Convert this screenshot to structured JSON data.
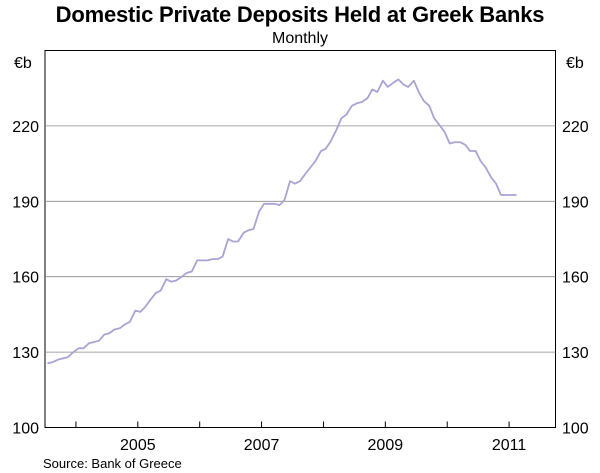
{
  "chart_data": {
    "type": "line",
    "title": "Domestic Private Deposits Held at Greek Banks",
    "subtitle": "Monthly",
    "ylabel_left": "€b",
    "ylabel_right": "€b",
    "ylim": [
      100,
      250
    ],
    "yticks": [
      100,
      130,
      160,
      190,
      220
    ],
    "xlim": [
      2003.5,
      2011.75
    ],
    "xtick_labels": [
      {
        "label": "2005",
        "value": 2005.0
      },
      {
        "label": "2007",
        "value": 2007.0
      },
      {
        "label": "2009",
        "value": 2009.0
      },
      {
        "label": "2011",
        "value": 2011.0
      }
    ],
    "grid": true,
    "line_color": "#a9a3d6",
    "series": [
      {
        "x": [
          2003.54,
          2003.62,
          2003.71,
          2003.79,
          2003.87,
          2003.96,
          2004.04,
          2004.12,
          2004.21,
          2004.29,
          2004.37,
          2004.46,
          2004.54,
          2004.62,
          2004.71,
          2004.79,
          2004.87,
          2004.96,
          2005.04,
          2005.12,
          2005.21,
          2005.29,
          2005.37,
          2005.46,
          2005.54,
          2005.62,
          2005.71,
          2005.79,
          2005.87,
          2005.96,
          2006.04,
          2006.12,
          2006.21,
          2006.29,
          2006.37,
          2006.46,
          2006.54,
          2006.62,
          2006.71,
          2006.79,
          2006.87,
          2006.96,
          2007.04,
          2007.12,
          2007.21,
          2007.29,
          2007.37,
          2007.46,
          2007.54,
          2007.62,
          2007.71,
          2007.79,
          2007.87,
          2007.96,
          2008.04,
          2008.12,
          2008.21,
          2008.29,
          2008.37,
          2008.46,
          2008.54,
          2008.62,
          2008.71,
          2008.79,
          2008.87,
          2008.96,
          2009.04,
          2009.12,
          2009.21,
          2009.29,
          2009.37,
          2009.46,
          2009.54,
          2009.62,
          2009.71,
          2009.79,
          2009.87,
          2009.96,
          2010.04,
          2010.12,
          2010.21,
          2010.29,
          2010.37,
          2010.46,
          2010.54,
          2010.62,
          2010.71,
          2010.79,
          2010.87,
          2010.96,
          2011.04,
          2011.12
        ],
        "y": [
          125.5,
          126.0,
          127.0,
          127.5,
          128.0,
          130.0,
          131.5,
          131.5,
          133.5,
          134.0,
          134.5,
          137.0,
          137.5,
          139.0,
          139.5,
          141.0,
          142.0,
          146.5,
          146.0,
          148.0,
          151.0,
          153.5,
          154.5,
          159.0,
          158.0,
          158.5,
          160.0,
          161.5,
          162.0,
          166.5,
          166.5,
          166.5,
          167.0,
          167.0,
          168.0,
          175.0,
          174.0,
          174.0,
          177.5,
          178.5,
          179.0,
          186.0,
          189.0,
          189.0,
          189.0,
          188.5,
          190.5,
          198.0,
          197.0,
          198.0,
          201.0,
          203.5,
          206.0,
          210.0,
          211.0,
          214.0,
          218.5,
          223.0,
          224.5,
          228.0,
          229.0,
          229.5,
          231.0,
          234.5,
          233.5,
          238.0,
          235.5,
          237.0,
          238.5,
          236.5,
          235.5,
          238.0,
          233.5,
          230.0,
          228.0,
          223.0,
          220.5,
          217.5,
          213.0,
          213.5,
          213.5,
          212.5,
          210.0,
          210.0,
          206.0,
          203.5,
          199.5,
          197.0,
          192.5,
          192.5,
          192.5,
          192.5
        ]
      }
    ]
  },
  "source": "Source: Bank of Greece"
}
